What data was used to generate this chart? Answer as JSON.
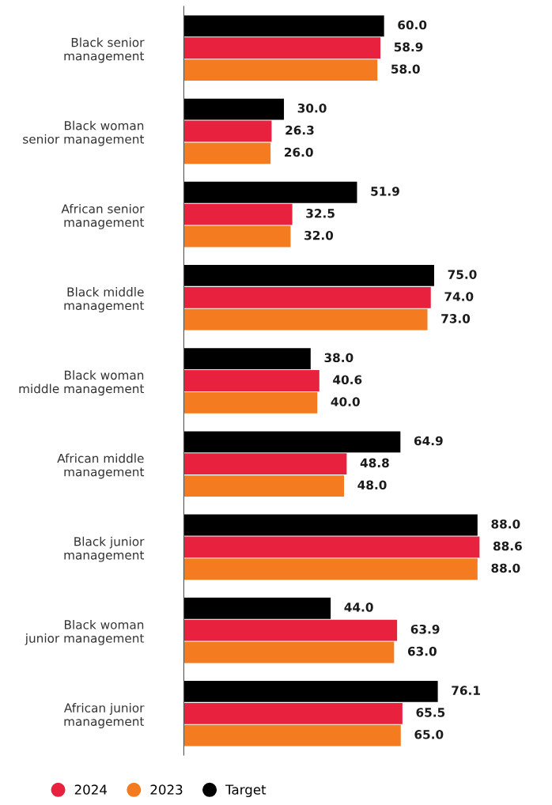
{
  "chart_data": {
    "type": "bar",
    "orientation": "horizontal",
    "categories": [
      "Black senior\nmanagement",
      "Black woman\nsenior management",
      "African senior\nmanagement",
      "Black middle\nmanagement",
      "Black woman\nmiddle management",
      "African middle\nmanagement",
      "Black junior\nmanagement",
      "Black woman\njunior management",
      "African junior\nmanagement"
    ],
    "series": [
      {
        "name": "Target",
        "color": "#000000",
        "values": [
          60.0,
          30.0,
          51.9,
          75.0,
          38.0,
          64.9,
          88.0,
          44.0,
          76.1
        ],
        "value_labels": [
          "60.0",
          "30.0",
          "51.9",
          "75.0",
          "38.0",
          "64.9",
          "88.0",
          "44.0",
          "76.1"
        ]
      },
      {
        "name": "2024",
        "color": "#e8213f",
        "values": [
          58.9,
          26.3,
          32.5,
          74.0,
          40.6,
          48.8,
          88.6,
          63.9,
          65.5
        ],
        "value_labels": [
          "58.9",
          "26.3",
          "32.5",
          "74.0",
          "40.6",
          "48.8",
          "88.6",
          "63.9",
          "65.5"
        ]
      },
      {
        "name": "2023",
        "color": "#f47b20",
        "values": [
          58.0,
          26.0,
          32.0,
          73.0,
          40.0,
          48.0,
          88.0,
          63.0,
          65.0
        ],
        "value_labels": [
          "58.0",
          "26.0",
          "32.0",
          "73.0",
          "40.0",
          "48.0",
          "88.0",
          "63.0",
          "65.0"
        ]
      }
    ],
    "grid": false,
    "legend": "bottom left",
    "marker": "circle"
  }
}
